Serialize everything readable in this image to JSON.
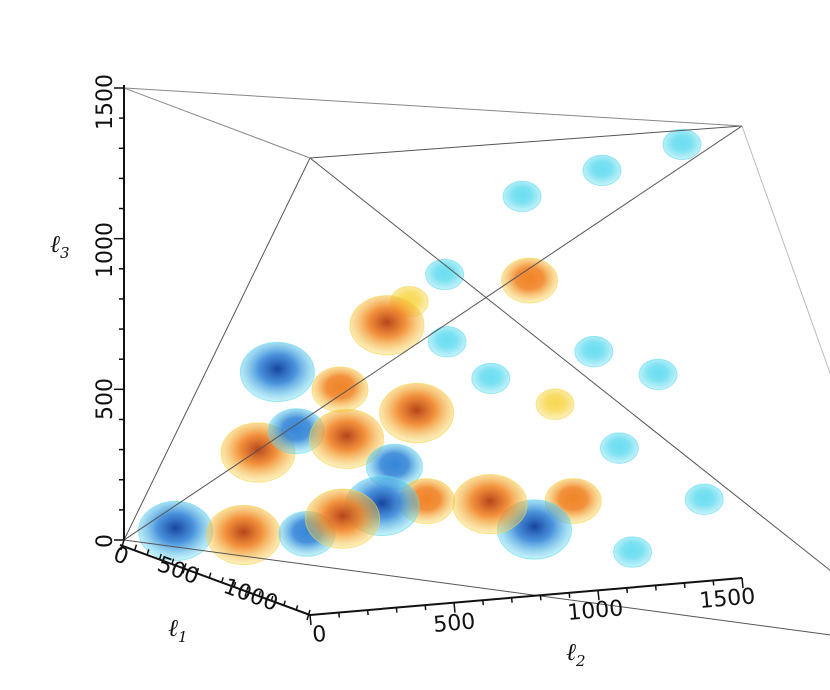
{
  "chart_data": {
    "type": "scatter",
    "title": "",
    "axes": {
      "l1": {
        "label": "ℓ",
        "subscript": "1",
        "range": [
          0,
          1500
        ],
        "ticks": [
          "0",
          "500",
          "1000"
        ]
      },
      "l2": {
        "label": "ℓ",
        "subscript": "2",
        "range": [
          0,
          1500
        ],
        "ticks": [
          "0",
          "500",
          "1000",
          "1500"
        ]
      },
      "l3": {
        "label": "ℓ",
        "subscript": "3",
        "range": [
          0,
          1500
        ],
        "ticks": [
          "0",
          "500",
          "1000",
          "1500"
        ]
      }
    },
    "grid": false,
    "legend": "none",
    "colors": {
      "positive_strong": "#b23a0e",
      "positive": "#f07d1a",
      "positive_weak": "#f7d64a",
      "negative_strong": "#0a3a9a",
      "negative": "#2a7fd6",
      "negative_weak": "#63dcf0",
      "frame": "#555555"
    },
    "points": [
      {
        "l1": 150,
        "l2": 80,
        "l3": 60,
        "sign": "negative",
        "level": 3
      },
      {
        "l1": 300,
        "l2": 200,
        "l3": 80,
        "sign": "positive",
        "level": 3
      },
      {
        "l1": 480,
        "l2": 300,
        "l3": 120,
        "sign": "negative",
        "level": 2
      },
      {
        "l1": 500,
        "l2": 380,
        "l3": 180,
        "sign": "positive",
        "level": 3
      },
      {
        "l1": 420,
        "l2": 500,
        "l3": 220,
        "sign": "negative",
        "level": 3
      },
      {
        "l1": 380,
        "l2": 620,
        "l3": 240,
        "sign": "positive",
        "level": 2
      },
      {
        "l1": 360,
        "l2": 780,
        "l3": 240,
        "sign": "positive",
        "level": 3
      },
      {
        "l1": 320,
        "l2": 900,
        "l3": 160,
        "sign": "negative",
        "level": 3
      },
      {
        "l1": 300,
        "l2": 1000,
        "l3": 260,
        "sign": "positive",
        "level": 2
      },
      {
        "l1": 280,
        "l2": 1150,
        "l3": 100,
        "sign": "negative",
        "level": 1
      },
      {
        "l1": 250,
        "l2": 250,
        "l3": 350,
        "sign": "positive",
        "level": 3
      },
      {
        "l1": 260,
        "l2": 340,
        "l3": 430,
        "sign": "negative",
        "level": 2
      },
      {
        "l1": 300,
        "l2": 450,
        "l3": 420,
        "sign": "positive",
        "level": 3
      },
      {
        "l1": 320,
        "l2": 560,
        "l3": 340,
        "sign": "negative",
        "level": 2
      },
      {
        "l1": 240,
        "l2": 300,
        "l3": 620,
        "sign": "negative",
        "level": 3
      },
      {
        "l1": 280,
        "l2": 440,
        "l3": 580,
        "sign": "positive",
        "level": 2
      },
      {
        "l1": 300,
        "l2": 620,
        "l3": 520,
        "sign": "positive",
        "level": 3
      },
      {
        "l1": 260,
        "l2": 560,
        "l3": 800,
        "sign": "positive",
        "level": 3
      },
      {
        "l1": 280,
        "l2": 700,
        "l3": 760,
        "sign": "negative",
        "level": 1
      },
      {
        "l1": 300,
        "l2": 800,
        "l3": 650,
        "sign": "negative",
        "level": 1
      },
      {
        "l1": 320,
        "l2": 950,
        "l3": 580,
        "sign": "positive",
        "level": 1
      },
      {
        "l1": 280,
        "l2": 900,
        "l3": 980,
        "sign": "positive",
        "level": 2
      },
      {
        "l1": 260,
        "l2": 700,
        "l3": 980,
        "sign": "negative",
        "level": 1
      },
      {
        "l1": 240,
        "l2": 620,
        "l3": 880,
        "sign": "positive",
        "level": 1
      },
      {
        "l1": 300,
        "l2": 1050,
        "l3": 760,
        "sign": "negative",
        "level": 1
      },
      {
        "l1": 320,
        "l2": 1200,
        "l3": 700,
        "sign": "negative",
        "level": 1
      },
      {
        "l1": 340,
        "l2": 1100,
        "l3": 450,
        "sign": "negative",
        "level": 1
      },
      {
        "l1": 360,
        "l2": 1300,
        "l3": 300,
        "sign": "negative",
        "level": 1
      },
      {
        "l1": 220,
        "l2": 900,
        "l3": 1250,
        "sign": "negative",
        "level": 1
      },
      {
        "l1": 200,
        "l2": 1100,
        "l3": 1350,
        "sign": "negative",
        "level": 1
      },
      {
        "l1": 180,
        "l2": 1300,
        "l3": 1450,
        "sign": "negative",
        "level": 1
      }
    ]
  }
}
